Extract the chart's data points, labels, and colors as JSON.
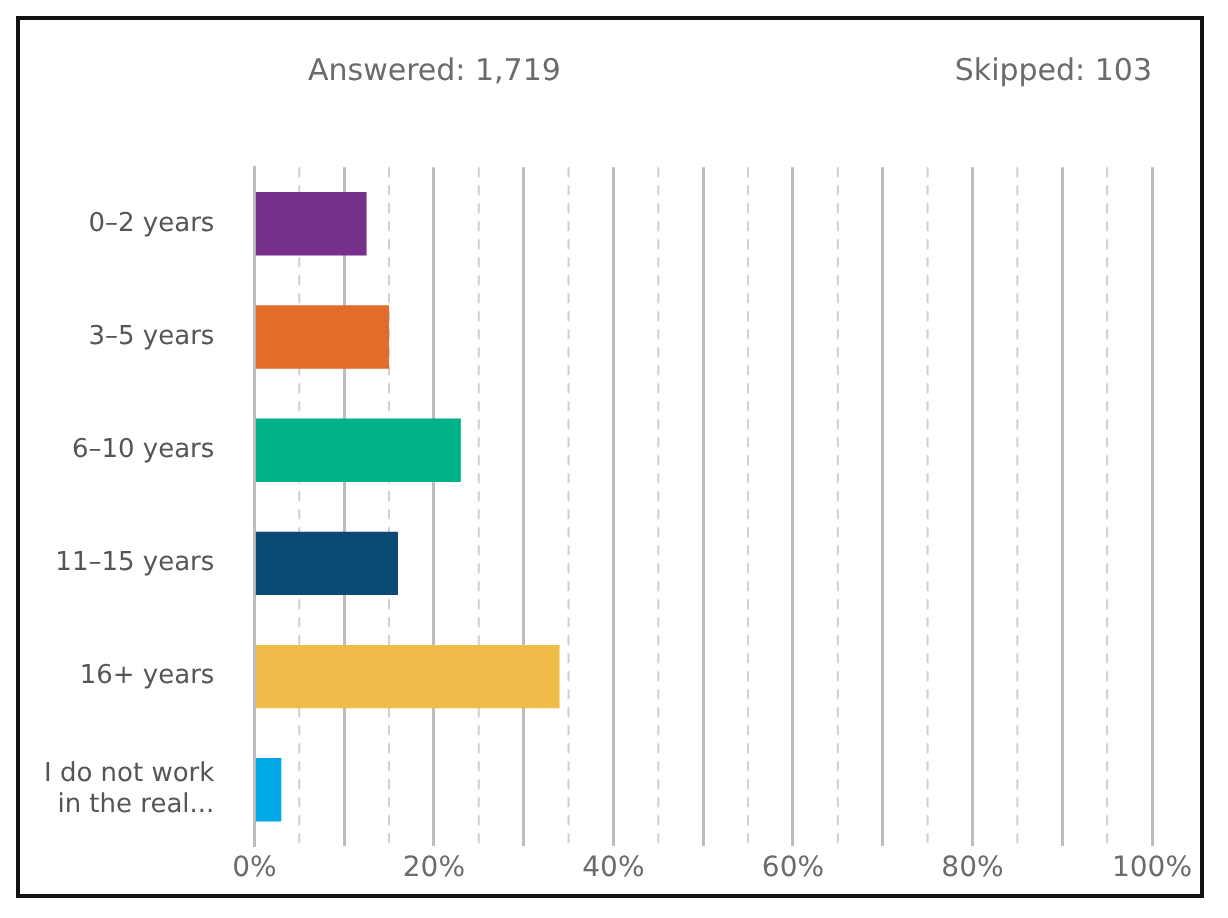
{
  "chart_data": {
    "type": "bar",
    "orientation": "horizontal",
    "categories": [
      "0–2 years",
      "3–5 years",
      "6–10 years",
      "11–15 years",
      "16+ years",
      "I do not work in the real..."
    ],
    "values": [
      12.5,
      15,
      23,
      16,
      34,
      3
    ],
    "colors": [
      "#76308a",
      "#e36c2a",
      "#00b287",
      "#0a4a74",
      "#efbc4a",
      "#00a8e6"
    ],
    "xlim": [
      0,
      100
    ],
    "xticks": [
      {
        "value": 0,
        "label": "0%"
      },
      {
        "value": 10,
        "label": null
      },
      {
        "value": 20,
        "label": "20%"
      },
      {
        "value": 30,
        "label": null
      },
      {
        "value": 40,
        "label": "40%"
      },
      {
        "value": 50,
        "label": null
      },
      {
        "value": 60,
        "label": "60%"
      },
      {
        "value": 70,
        "label": null
      },
      {
        "value": 80,
        "label": "80%"
      },
      {
        "value": 90,
        "label": null
      },
      {
        "value": 100,
        "label": "100%"
      }
    ],
    "grid": "x",
    "annotations": [
      "Answered: 1,719",
      "Skipped: 103"
    ]
  }
}
